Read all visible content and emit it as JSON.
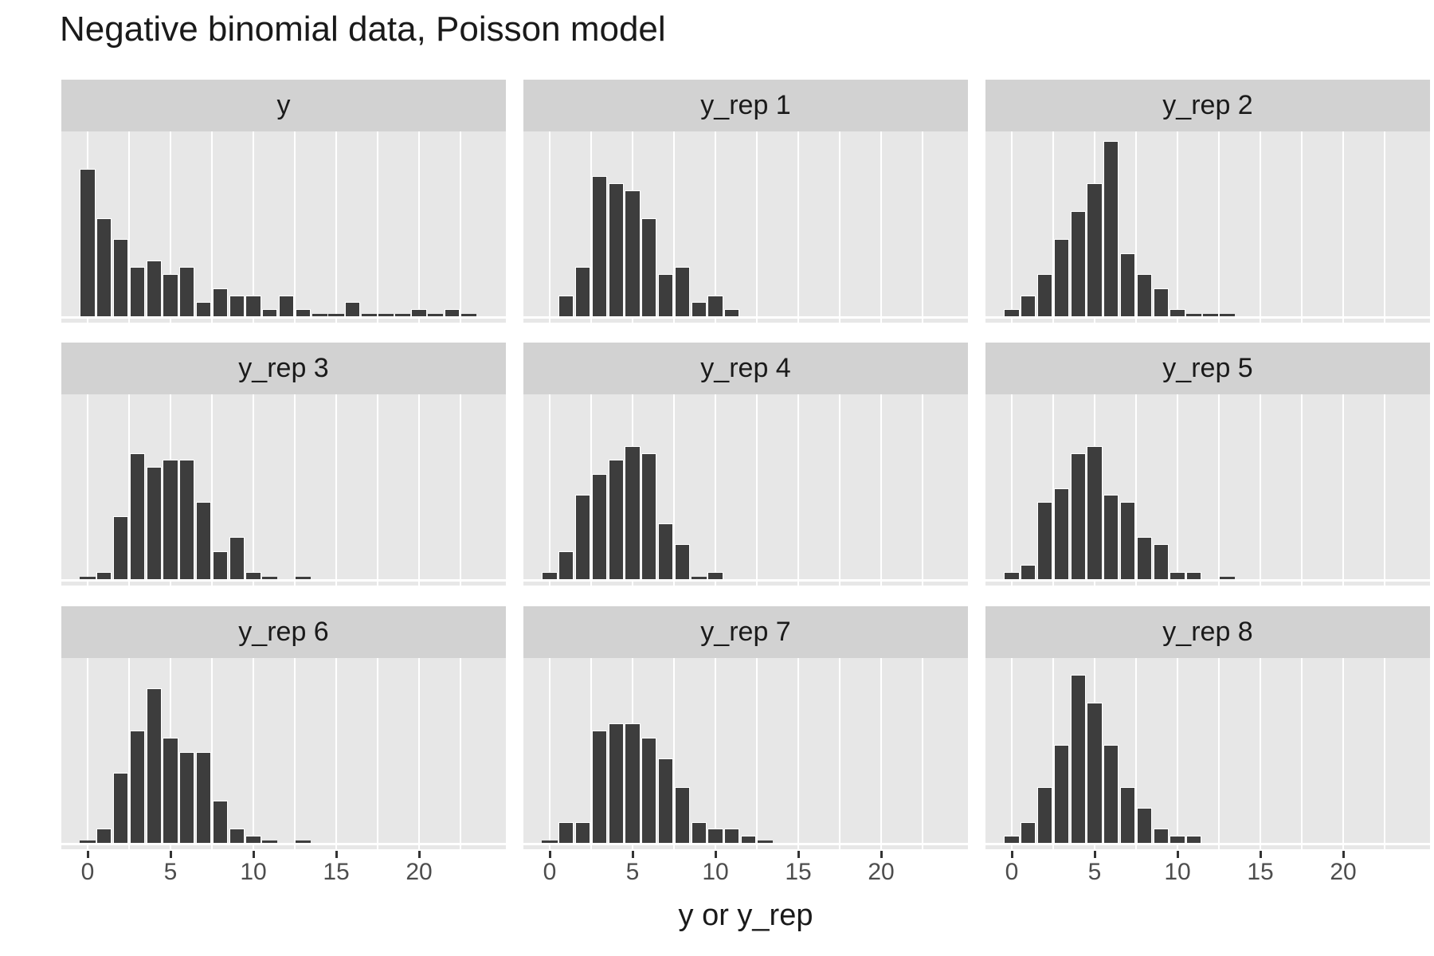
{
  "title": "Negative binomial data, Poisson model",
  "x_axis": {
    "label": "y or y_rep",
    "tick_labels": [
      "0",
      "5",
      "10",
      "15",
      "20"
    ],
    "tick_values": [
      0,
      5,
      10,
      15,
      20
    ]
  },
  "colors": {
    "background": "#ffffff",
    "panel_background": "#e7e7e7",
    "strip_background": "#d2d2d2",
    "bar_fill": "#3d3d3d",
    "bar_outline": "#ffffff",
    "gridline": "#ffffff",
    "tick_mark": "#333333",
    "tick_label": "#4d4d4d",
    "text": "#1a1a1a"
  },
  "chart_data": {
    "type": "bar",
    "subtype": "faceted_histogram_grid_3x3",
    "title": "Negative binomial data, Poisson model",
    "xlabel": "y or y_rep",
    "ylabel": "",
    "bin_width": 1,
    "x_range": [
      -1.3,
      25.3
    ],
    "x_ticks": [
      0,
      5,
      10,
      15,
      20
    ],
    "minor_gridlines_every": 2.5,
    "y_max_count": 25,
    "grid": "vertical-only",
    "legend": "none",
    "facets": [
      {
        "label": "y",
        "start": 0,
        "counts": [
          21,
          14,
          11,
          7,
          8,
          6,
          7,
          2,
          4,
          3,
          3,
          1,
          3,
          1,
          0,
          0,
          2,
          0,
          0,
          0,
          1,
          0,
          1,
          0
        ],
        "zero_dash_bins": []
      },
      {
        "label": "y_rep 1",
        "start": 1,
        "counts": [
          3,
          7,
          20,
          19,
          18,
          14,
          6,
          7,
          2,
          3,
          1
        ],
        "zero_dash_bins": []
      },
      {
        "label": "y_rep 2",
        "start": 0,
        "counts": [
          1,
          3,
          6,
          11,
          15,
          19,
          25,
          9,
          6,
          4,
          1
        ],
        "zero_dash_bins": [
          11,
          12,
          13
        ]
      },
      {
        "label": "y_rep 3",
        "start": 0,
        "counts": [
          0,
          1,
          9,
          18,
          16,
          17,
          17,
          11,
          4,
          6,
          1
        ],
        "zero_dash_bins": [
          11,
          13
        ]
      },
      {
        "label": "y_rep 4",
        "start": 0,
        "counts": [
          1,
          4,
          12,
          15,
          17,
          19,
          18,
          8,
          5,
          0,
          1
        ],
        "zero_dash_bins": []
      },
      {
        "label": "y_rep 5",
        "start": 0,
        "counts": [
          1,
          2,
          11,
          13,
          18,
          19,
          12,
          11,
          6,
          5,
          1,
          1
        ],
        "zero_dash_bins": [
          13
        ]
      },
      {
        "label": "y_rep 6",
        "start": 0,
        "counts": [
          0,
          2,
          10,
          16,
          22,
          15,
          13,
          13,
          6,
          2,
          1
        ],
        "zero_dash_bins": [
          11,
          13
        ]
      },
      {
        "label": "y_rep 7",
        "start": 0,
        "counts": [
          0,
          3,
          3,
          16,
          17,
          17,
          15,
          12,
          8,
          3,
          2,
          2,
          1
        ],
        "zero_dash_bins": [
          13
        ]
      },
      {
        "label": "y_rep 8",
        "start": 0,
        "counts": [
          1,
          3,
          8,
          14,
          24,
          20,
          14,
          8,
          5,
          2,
          1,
          1
        ],
        "zero_dash_bins": []
      }
    ]
  }
}
